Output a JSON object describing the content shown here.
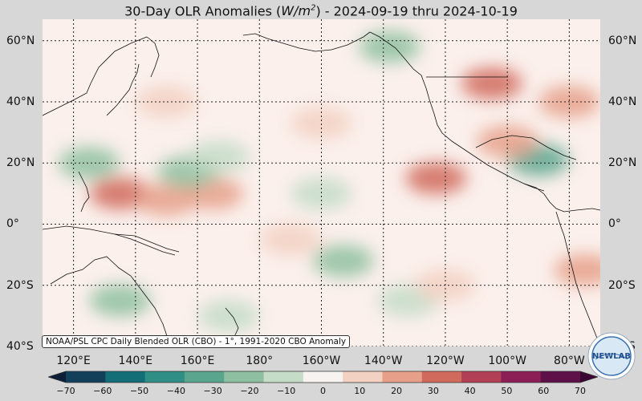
{
  "title": {
    "prefix": "30-Day OLR Anomalies (",
    "unit_base": "W/m",
    "unit_exp": "2",
    "suffix": ") - 2024-09-19 thru 2024-10-19"
  },
  "map": {
    "projection": "equirectangular",
    "lon_range": [
      110,
      290
    ],
    "lat_range": [
      -40,
      67
    ],
    "gridlines": "dotted",
    "background_anomaly_color": "#fbf0ec"
  },
  "lat_labels": [
    {
      "text": "60°N",
      "lat": 60
    },
    {
      "text": "40°N",
      "lat": 40
    },
    {
      "text": "20°N",
      "lat": 20
    },
    {
      "text": "0°",
      "lat": 0
    },
    {
      "text": "20°S",
      "lat": -20
    },
    {
      "text": "40°S",
      "lat": -40
    }
  ],
  "lon_labels": [
    {
      "text": "120°E",
      "lon": 120
    },
    {
      "text": "140°E",
      "lon": 140
    },
    {
      "text": "160°E",
      "lon": 160
    },
    {
      "text": "180°",
      "lon": 180
    },
    {
      "text": "160°W",
      "lon": 200
    },
    {
      "text": "140°W",
      "lon": 220
    },
    {
      "text": "120°W",
      "lon": 240
    },
    {
      "text": "100°W",
      "lon": 260
    },
    {
      "text": "80°W",
      "lon": 280
    }
  ],
  "anomaly_regions": [
    {
      "lon": 135,
      "lat": 10,
      "value": 30
    },
    {
      "lon": 150,
      "lat": 8,
      "value": 22
    },
    {
      "lon": 165,
      "lat": 10,
      "value": 15
    },
    {
      "lon": 125,
      "lat": 20,
      "value": -25
    },
    {
      "lon": 157,
      "lat": 17,
      "value": -18
    },
    {
      "lon": 167,
      "lat": 22,
      "value": -15
    },
    {
      "lon": 200,
      "lat": 10,
      "value": -12
    },
    {
      "lon": 237,
      "lat": 15,
      "value": 30
    },
    {
      "lon": 270,
      "lat": 21,
      "value": -28
    },
    {
      "lon": 260,
      "lat": 27,
      "value": 22
    },
    {
      "lon": 255,
      "lat": 46,
      "value": 28
    },
    {
      "lon": 222,
      "lat": 58,
      "value": -18
    },
    {
      "lon": 150,
      "lat": 40,
      "value": 12
    },
    {
      "lon": 200,
      "lat": 33,
      "value": 10
    },
    {
      "lon": 207,
      "lat": -12,
      "value": -22
    },
    {
      "lon": 135,
      "lat": -25,
      "value": -20
    },
    {
      "lon": 170,
      "lat": -30,
      "value": -15
    },
    {
      "lon": 228,
      "lat": -25,
      "value": -15
    },
    {
      "lon": 190,
      "lat": -5,
      "value": 12
    },
    {
      "lon": 285,
      "lat": -15,
      "value": 15
    },
    {
      "lon": 240,
      "lat": -20,
      "value": 12
    },
    {
      "lon": 280,
      "lat": 40,
      "value": 18
    }
  ],
  "colorbar": {
    "ticks": [
      -70,
      -60,
      -50,
      -40,
      -30,
      -20,
      -10,
      0,
      10,
      20,
      30,
      40,
      50,
      60,
      70
    ],
    "range": [
      -75,
      75
    ],
    "colors": [
      "#0d1f36",
      "#12405a",
      "#146e78",
      "#2f8f86",
      "#5aa58e",
      "#8ebfa0",
      "#c4dcc8",
      "#f7f3f1",
      "#f2d0c2",
      "#e6a08a",
      "#d06a5c",
      "#b13f55",
      "#8c1f55",
      "#5e1048",
      "#3a0632"
    ]
  },
  "credit": "NOAA/PSL CPC Daily Blended OLR (CBO) - 1°, 1991-2020 CBO Anomaly",
  "logo_text": "NEWLAB"
}
